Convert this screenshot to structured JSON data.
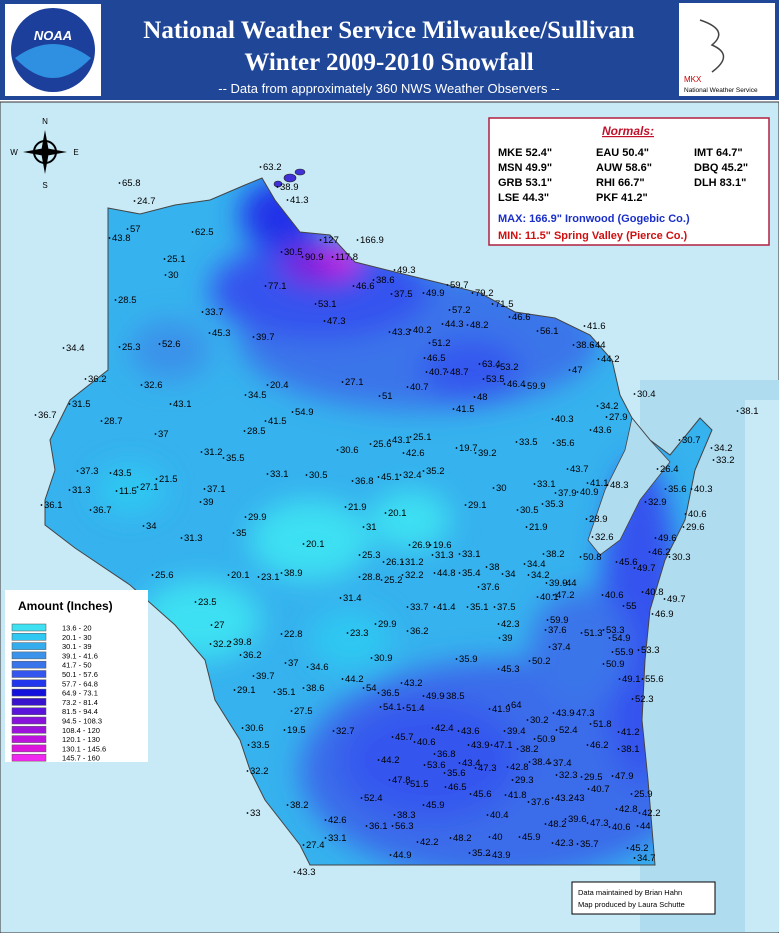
{
  "header": {
    "title_line1": "National Weather Service Milwaukee/Sullivan",
    "title_line2": "Winter 2009-2010 Snowfall",
    "subtitle": "-- Data from approximately 360 NWS Weather Observers --",
    "logo_left": "NOAA",
    "logo_right_office": "MKX",
    "logo_right_name": "National Weather Service"
  },
  "normals": {
    "heading": "Normals:",
    "entries": [
      "MKE 52.4\"",
      "EAU 50.4\"",
      "IMT 64.7\"",
      "MSN 49.9\"",
      "AUW 58.6\"",
      "DBQ 45.2\"",
      "GRB 53.1\"",
      "RHI 66.7\"",
      "DLH 83.1\"",
      "LSE 44.3\"",
      "PKF 41.2\""
    ],
    "max": "MAX: 166.9\" Ironwood (Gogebic Co.)",
    "min": "MIN: 11.5\" Spring Valley (Pierce Co.)"
  },
  "compass": {
    "n": "N",
    "e": "E",
    "s": "S",
    "w": "W"
  },
  "legend": {
    "title": "Amount (Inches)",
    "items": [
      {
        "label": "13.6 - 20",
        "color": "#3ee0f2"
      },
      {
        "label": "20.1 - 30",
        "color": "#2fc8f2"
      },
      {
        "label": "30.1 - 39",
        "color": "#34acee"
      },
      {
        "label": "39.1 - 41.6",
        "color": "#3a92ea"
      },
      {
        "label": "41.7 - 50",
        "color": "#3a74ea"
      },
      {
        "label": "50.1 - 57.6",
        "color": "#3456ee"
      },
      {
        "label": "57.7 - 64.8",
        "color": "#2236ee"
      },
      {
        "label": "64.9 - 73.1",
        "color": "#1212dc"
      },
      {
        "label": "73.2 - 81.4",
        "color": "#3812cc"
      },
      {
        "label": "81.5 - 94.4",
        "color": "#5a14dc"
      },
      {
        "label": "94.5 - 108.3",
        "color": "#8814dc"
      },
      {
        "label": "108.4 - 120",
        "color": "#9c14dc"
      },
      {
        "label": "120.1 - 130",
        "color": "#bc14dc"
      },
      {
        "label": "130.1 - 145.6",
        "color": "#dc14dc"
      },
      {
        "label": "145.7 - 160",
        "color": "#f028f0"
      }
    ]
  },
  "stations": [
    65.8,
    24.7,
    57,
    43.8,
    62.5,
    25.1,
    30,
    63.2,
    38.9,
    41.3,
    30.5,
    90.9,
    127,
    117.8,
    166.9,
    77.1,
    46.6,
    38.6,
    49.3,
    37.5,
    49.9,
    59.7,
    79.2,
    71.5,
    46.6,
    53.1,
    47.3,
    43.3,
    40.2,
    57.2,
    44.3,
    48.2,
    56.1,
    41.6,
    38.6,
    44,
    44.2,
    51.2,
    28.5,
    33.7,
    45.3,
    39.7,
    34.4,
    25.3,
    52.6,
    46.5,
    40.7,
    48.7,
    63.4,
    53.2,
    53.5,
    46.4,
    59.9,
    47,
    36.2,
    32.6,
    20.4,
    27.1,
    43.1,
    34.5,
    51,
    40.7,
    41.5,
    48,
    30.4,
    34.2,
    27.9,
    40.3,
    43.6,
    36.7,
    31.5,
    28.7,
    54.9,
    41.5,
    28.5,
    37,
    38.1,
    30.7,
    34.2,
    33.2,
    30.6,
    25.6,
    43.1,
    25.1,
    42.6,
    19.7,
    39.2,
    33.5,
    35.6,
    31.2,
    35.5,
    37.3,
    43.5,
    33.1,
    30.5,
    36.8,
    45.1,
    32.4,
    35.2,
    43.7,
    41.1,
    48.3,
    26.4,
    21.5,
    31.3,
    11.5,
    27.1,
    37.1,
    30,
    33.1,
    37.9,
    40.9,
    32.9,
    35.6,
    40.3,
    36.1,
    36.7,
    39,
    21.9,
    20.1,
    29.1,
    30.5,
    35.3,
    28.9,
    40.6,
    29.6,
    29.9,
    34,
    35,
    31,
    21.9,
    32.6,
    31.3,
    20.1,
    26.9,
    19.6,
    31.3,
    33.1,
    38.2,
    50.8,
    49.6,
    46.2,
    30.3,
    25.3,
    26.1,
    31.2,
    38,
    34.4,
    34.2,
    45.6,
    49.7,
    25.6,
    20.1,
    23.1,
    38.9,
    28.8,
    25.2,
    32.2,
    44.8,
    35.4,
    34,
    37.6,
    39.9,
    44,
    40.6,
    40.8,
    49.7,
    23.5,
    31.4,
    33.7,
    41.4,
    35.1,
    37.5,
    40.1,
    47.2,
    55,
    46.9,
    27,
    22.8,
    39.8,
    32.2,
    36.2,
    29.9,
    36.2,
    23.3,
    42.3,
    59.9,
    37.6,
    53.3,
    51.3,
    54.9,
    39,
    37.4,
    50.2,
    55.9,
    53.3,
    35.9,
    30.9,
    37,
    34.6,
    50.9,
    45.3,
    49.1,
    55.6,
    29.1,
    35.1,
    39.7,
    38.6,
    44.2,
    43.2,
    54,
    36.5,
    49.9,
    38.5,
    52.3,
    27.5,
    54.1,
    51.4,
    41.9,
    64,
    43.9,
    47.3,
    51.8,
    30.6,
    19.5,
    32.7,
    42.4,
    43.6,
    39.4,
    30.2,
    52.4,
    41.2,
    50.9,
    33.5,
    45.7,
    40.6,
    36.8,
    43.9,
    47.1,
    38.2,
    46.2,
    38.1,
    44.2,
    53.6,
    43.4,
    47.3,
    42.8,
    38.4,
    37.4,
    32.2,
    35.6,
    47.8,
    51.5,
    46.5,
    32.3,
    29.5,
    47.9,
    29.3,
    40.7,
    45.6,
    41.8,
    37.6,
    43.2,
    43,
    25.9,
    52.4,
    42.8,
    42.2,
    33,
    38.2,
    45.9,
    38.3,
    42.6,
    36.1,
    56.3,
    40.4,
    48.2,
    39.6,
    47.3,
    40.6,
    44,
    33.1,
    42.2,
    48.2,
    40,
    45.9,
    42.3,
    35.7,
    45.2,
    27.4,
    34.7,
    44.9,
    35.2,
    43.9,
    43.3
  ],
  "credits": {
    "line1": "Data maintained by Brian Hahn",
    "line2": "Map produced by Laura Schutte"
  }
}
